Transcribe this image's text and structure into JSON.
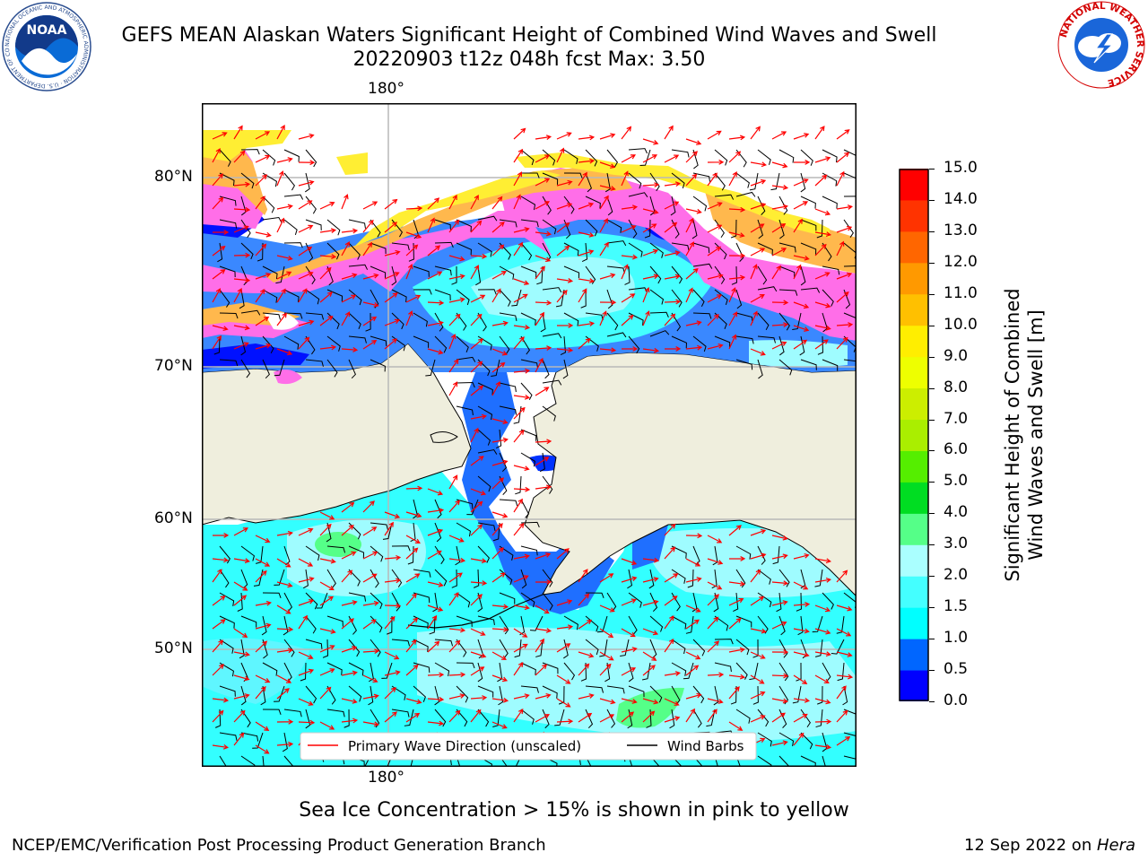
{
  "header": {
    "title_line1": "GEFS MEAN Alaskan Waters Significant Height of Combined Wind Waves and Swell",
    "title_line2": "20220903 t12z 048h fcst   Max: 3.50",
    "noara_logo_icon": "noaa-logo-icon",
    "noaa_logo_text": "NOAA",
    "noaa_ring_text": "NATIONAL OCEANIC AND ATMOSPHERIC ADMINISTRATION · U.S. DEPARTMENT OF COMMERCE",
    "nws_logo_icon": "nws-logo-icon",
    "nws_ring_text": "NATIONAL WEATHER SERVICE"
  },
  "map": {
    "lon_label_top": "180°",
    "lon_label_bottom": "180°",
    "lat_labels": [
      "80°N",
      "70°N",
      "60°N",
      "50°N"
    ],
    "legend": {
      "wave_direction": "Primary Wave Direction (unscaled)",
      "wind_barbs": "Wind Barbs"
    },
    "colors": {
      "land": "#efeedd",
      "ice_pink": "#ff6ee8",
      "ice_orange": "#ffb84d",
      "ice_yellow": "#ffee33",
      "arrow": "#ff0000",
      "barb": "#000000"
    }
  },
  "colorbar": {
    "label_line1": "Significant Height of Combined",
    "label_line2": "Wind Waves and Swell [m]",
    "ticks": [
      "0.0",
      "0.5",
      "1.0",
      "1.5",
      "2.0",
      "3.0",
      "4.0",
      "5.0",
      "6.0",
      "7.0",
      "8.0",
      "9.0",
      "10.0",
      "11.0",
      "12.0",
      "13.0",
      "14.0",
      "15.0"
    ],
    "colors": [
      "#0000ff",
      "#0066ff",
      "#00ffff",
      "#44ffff",
      "#aaffff",
      "#55ff88",
      "#00dd22",
      "#55ee00",
      "#aaee00",
      "#ccee00",
      "#eeff00",
      "#ffee00",
      "#ffc000",
      "#ff9900",
      "#ff6600",
      "#ff3300",
      "#ff0000"
    ]
  },
  "notes": {
    "sea_ice": "Sea Ice Concentration > 15% is shown in pink to yellow"
  },
  "footer": {
    "branch": "NCEP/EMC/Verification Post Processing Product Generation Branch",
    "date": "12 Sep 2022 on ",
    "machine": "Hera"
  }
}
